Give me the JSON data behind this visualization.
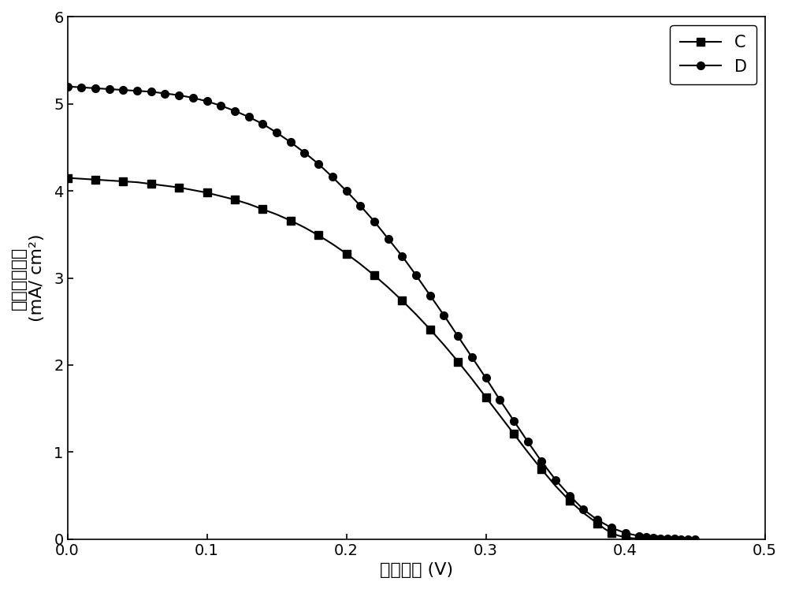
{
  "xlabel": "开路电压 (V)",
  "ylabel_line1": "短路电流密度",
  "ylabel_line2": "(mA/ cm²)",
  "xlim": [
    0,
    0.5
  ],
  "ylim": [
    0,
    6
  ],
  "xticks": [
    0.0,
    0.1,
    0.2,
    0.3,
    0.4,
    0.5
  ],
  "yticks": [
    0,
    1,
    2,
    3,
    4,
    5,
    6
  ],
  "series_C": {
    "label": "C",
    "marker": "s",
    "color": "#000000",
    "x": [
      0.0,
      0.01,
      0.02,
      0.03,
      0.04,
      0.05,
      0.06,
      0.07,
      0.08,
      0.09,
      0.1,
      0.11,
      0.12,
      0.13,
      0.14,
      0.15,
      0.16,
      0.17,
      0.18,
      0.19,
      0.2,
      0.21,
      0.22,
      0.23,
      0.24,
      0.25,
      0.26,
      0.27,
      0.28,
      0.29,
      0.3,
      0.31,
      0.32,
      0.33,
      0.34,
      0.35,
      0.36,
      0.37,
      0.38,
      0.385,
      0.39,
      0.395,
      0.4,
      0.405,
      0.41,
      0.415,
      0.42
    ],
    "y": [
      4.15,
      4.14,
      4.13,
      4.12,
      4.11,
      4.1,
      4.08,
      4.06,
      4.04,
      4.01,
      3.98,
      3.94,
      3.9,
      3.85,
      3.79,
      3.73,
      3.66,
      3.58,
      3.49,
      3.39,
      3.28,
      3.16,
      3.03,
      2.89,
      2.74,
      2.58,
      2.41,
      2.23,
      2.04,
      1.84,
      1.63,
      1.42,
      1.21,
      1.0,
      0.8,
      0.61,
      0.44,
      0.3,
      0.18,
      0.12,
      0.07,
      0.04,
      0.02,
      0.01,
      0.005,
      0.002,
      0.0
    ]
  },
  "series_D": {
    "label": "D",
    "marker": "o",
    "color": "#000000",
    "x": [
      0.0,
      0.01,
      0.02,
      0.03,
      0.04,
      0.05,
      0.06,
      0.07,
      0.08,
      0.09,
      0.1,
      0.11,
      0.12,
      0.13,
      0.14,
      0.15,
      0.16,
      0.17,
      0.18,
      0.19,
      0.2,
      0.21,
      0.22,
      0.23,
      0.24,
      0.25,
      0.26,
      0.27,
      0.28,
      0.29,
      0.3,
      0.31,
      0.32,
      0.33,
      0.34,
      0.35,
      0.36,
      0.37,
      0.38,
      0.39,
      0.4,
      0.41,
      0.415,
      0.42,
      0.425,
      0.43,
      0.435,
      0.44,
      0.445,
      0.45
    ],
    "y": [
      5.2,
      5.19,
      5.18,
      5.17,
      5.16,
      5.15,
      5.14,
      5.12,
      5.1,
      5.07,
      5.03,
      4.98,
      4.92,
      4.85,
      4.77,
      4.67,
      4.56,
      4.44,
      4.31,
      4.16,
      4.0,
      3.83,
      3.65,
      3.45,
      3.25,
      3.03,
      2.8,
      2.57,
      2.33,
      2.09,
      1.85,
      1.6,
      1.36,
      1.12,
      0.89,
      0.68,
      0.5,
      0.34,
      0.22,
      0.13,
      0.07,
      0.035,
      0.022,
      0.013,
      0.008,
      0.004,
      0.002,
      0.001,
      0.0005,
      0.0
    ]
  },
  "background_color": "#ffffff",
  "line_width": 1.5,
  "marker_size": 7,
  "legend_loc": "upper right",
  "legend_fontsize": 15,
  "tick_fontsize": 14,
  "label_fontsize": 16,
  "figsize": [
    10.0,
    7.47
  ],
  "dpi": 100
}
